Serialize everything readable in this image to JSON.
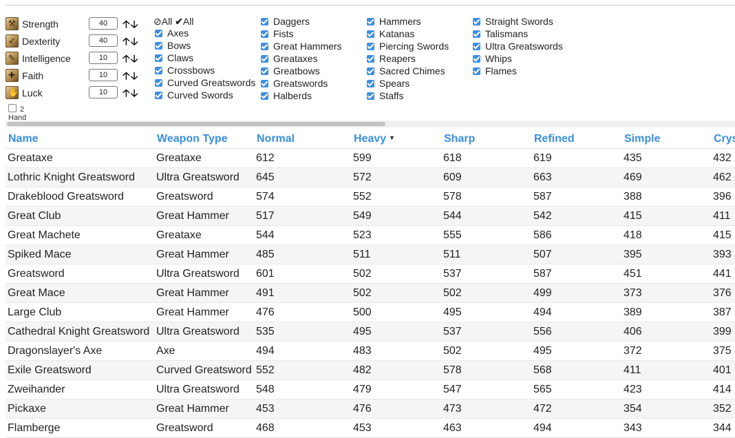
{
  "stats": [
    {
      "label": "Strength",
      "value": "40",
      "icon": "strength-icon"
    },
    {
      "label": "Dexterity",
      "value": "40",
      "icon": "dexterity-icon"
    },
    {
      "label": "Intelligence",
      "value": "10",
      "icon": "intelligence-icon"
    },
    {
      "label": "Faith",
      "value": "10",
      "icon": "faith-icon"
    },
    {
      "label": "Luck",
      "value": "10",
      "icon": "luck-icon"
    }
  ],
  "arrows": "🡡🡣",
  "two_hand_label": "2 Hand",
  "filters": {
    "none_label": "All",
    "all_label": "All",
    "col1": [
      "Axes",
      "Bows",
      "Claws",
      "Crossbows",
      "Curved Greatswords",
      "Curved Swords"
    ],
    "col2": [
      "Daggers",
      "Fists",
      "Great Hammers",
      "Greataxes",
      "Greatbows",
      "Greatswords",
      "Halberds"
    ],
    "col3": [
      "Hammers",
      "Katanas",
      "Piercing Swords",
      "Reapers",
      "Sacred Chimes",
      "Spears",
      "Staffs"
    ],
    "col4": [
      "Straight Swords",
      "Talismans",
      "Ultra Greatswords",
      "Whips",
      "Flames"
    ]
  },
  "table": {
    "headers": [
      "Name",
      "Weapon Type",
      "Normal",
      "Heavy",
      "Sharp",
      "Refined",
      "Simple",
      "Crys"
    ],
    "sorted_column": "Heavy",
    "rows": [
      [
        "Greataxe",
        "Greataxe",
        "612",
        "599",
        "618",
        "619",
        "435",
        "432"
      ],
      [
        "Lothric Knight Greatsword",
        "Ultra Greatsword",
        "645",
        "572",
        "609",
        "663",
        "469",
        "462"
      ],
      [
        "Drakeblood Greatsword",
        "Greatsword",
        "574",
        "552",
        "578",
        "587",
        "388",
        "396"
      ],
      [
        "Great Club",
        "Great Hammer",
        "517",
        "549",
        "544",
        "542",
        "415",
        "411"
      ],
      [
        "Great Machete",
        "Greataxe",
        "544",
        "523",
        "555",
        "586",
        "418",
        "415"
      ],
      [
        "Spiked Mace",
        "Great Hammer",
        "485",
        "511",
        "511",
        "507",
        "395",
        "393"
      ],
      [
        "Greatsword",
        "Ultra Greatsword",
        "601",
        "502",
        "537",
        "587",
        "451",
        "441"
      ],
      [
        "Great Mace",
        "Great Hammer",
        "491",
        "502",
        "502",
        "499",
        "373",
        "376"
      ],
      [
        "Large Club",
        "Great Hammer",
        "476",
        "500",
        "495",
        "494",
        "389",
        "387"
      ],
      [
        "Cathedral Knight Greatsword",
        "Ultra Greatsword",
        "535",
        "495",
        "537",
        "556",
        "406",
        "399"
      ],
      [
        "Dragonslayer's Axe",
        "Axe",
        "494",
        "483",
        "502",
        "495",
        "372",
        "375"
      ],
      [
        "Exile Greatsword",
        "Curved Greatsword",
        "552",
        "482",
        "578",
        "568",
        "411",
        "401"
      ],
      [
        "Zweihander",
        "Ultra Greatsword",
        "548",
        "479",
        "547",
        "565",
        "423",
        "414"
      ],
      [
        "Pickaxe",
        "Great Hammer",
        "453",
        "476",
        "473",
        "472",
        "354",
        "352"
      ],
      [
        "Flamberge",
        "Greatsword",
        "468",
        "453",
        "463",
        "494",
        "343",
        "344"
      ]
    ]
  },
  "colors": {
    "accent": "#3a8ee0",
    "checkbox": "#3d8fe0",
    "row_alt": "#f5f5f5"
  }
}
